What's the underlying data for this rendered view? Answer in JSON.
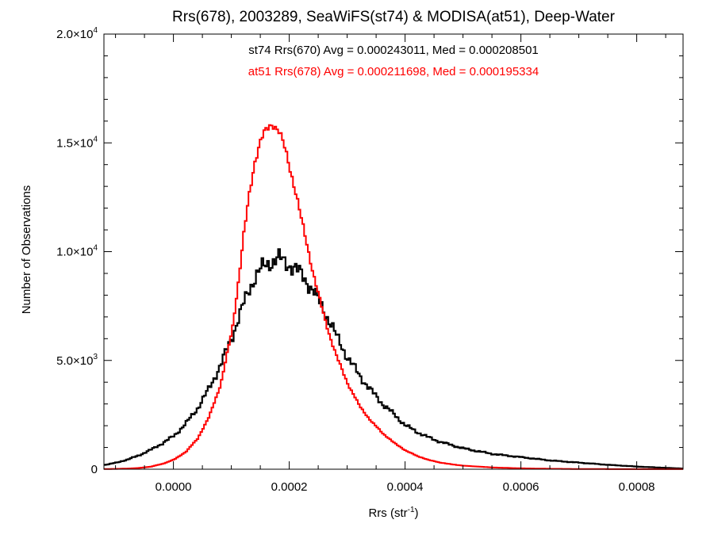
{
  "chart_data": {
    "type": "line",
    "title": "Rrs(678), 2003289, SeaWiFS(st74) & MODISA(at51), Deep-Water",
    "xlabel": "Rrs (str",
    "xlabel_sup": "-1",
    "xlabel_close": ")",
    "ylabel": "Number of Observations",
    "xlim": [
      -0.00012,
      0.00088
    ],
    "ylim": [
      0,
      20000
    ],
    "x_ticks": [
      {
        "value": 0.0,
        "label": "0.0000"
      },
      {
        "value": 0.0002,
        "label": "0.0002"
      },
      {
        "value": 0.0004,
        "label": "0.0004"
      },
      {
        "value": 0.0006,
        "label": "0.0006"
      },
      {
        "value": 0.0008,
        "label": "0.0008"
      }
    ],
    "y_ticks": [
      {
        "value": 0,
        "mant": "0",
        "exp": ""
      },
      {
        "value": 5000,
        "mant": "5.0×10",
        "exp": "3"
      },
      {
        "value": 10000,
        "mant": "1.0×10",
        "exp": "4"
      },
      {
        "value": 15000,
        "mant": "1.5×10",
        "exp": "4"
      },
      {
        "value": 20000,
        "mant": "2.0×10",
        "exp": "4"
      }
    ],
    "annotations": [
      {
        "text": "st74 Rrs(670) Avg = 0.000243011, Med = 0.000208501",
        "color": "#000000"
      },
      {
        "text": "at51 Rrs(678) Avg = 0.000211698, Med = 0.000195334",
        "color": "#ff0000"
      }
    ],
    "series": [
      {
        "color": "#000000",
        "style": "step",
        "x": [
          -0.00012,
          -0.0001,
          -8e-05,
          -6e-05,
          -4e-05,
          -2e-05,
          0.0,
          2e-05,
          4e-05,
          6e-05,
          8e-05,
          0.0001,
          0.00011,
          0.00012,
          0.00013,
          0.00014,
          0.00015,
          0.00016,
          0.00017,
          0.00018,
          0.00019,
          0.0002,
          0.00021,
          0.00022,
          0.00023,
          0.00024,
          0.00025,
          0.00026,
          0.00027,
          0.00028,
          0.0003,
          0.00032,
          0.00034,
          0.00036,
          0.00038,
          0.0004,
          0.00042,
          0.00044,
          0.00046,
          0.00048,
          0.0005,
          0.00055,
          0.0006,
          0.00065,
          0.0007,
          0.00075,
          0.0008,
          0.00085,
          0.00088
        ],
        "y": [
          200,
          300,
          450,
          650,
          900,
          1200,
          1550,
          2100,
          2800,
          3700,
          4800,
          6100,
          6900,
          7600,
          8300,
          8900,
          9200,
          9400,
          9600,
          9700,
          9500,
          9400,
          9200,
          8900,
          8600,
          8200,
          7700,
          7200,
          6700,
          6100,
          5100,
          4300,
          3600,
          3000,
          2500,
          2000,
          1700,
          1450,
          1250,
          1100,
          950,
          700,
          550,
          400,
          300,
          200,
          120,
          60,
          30
        ]
      },
      {
        "color": "#ff0000",
        "style": "step",
        "x": [
          -0.00012,
          -0.0001,
          -8e-05,
          -6e-05,
          -4e-05,
          -2e-05,
          0.0,
          2e-05,
          4e-05,
          6e-05,
          8e-05,
          0.0001,
          0.00011,
          0.00012,
          0.00013,
          0.00014,
          0.00015,
          0.00016,
          0.00017,
          0.00018,
          0.00019,
          0.0002,
          0.00021,
          0.00022,
          0.00023,
          0.00024,
          0.00025,
          0.00026,
          0.00027,
          0.00028,
          0.0003,
          0.00032,
          0.00034,
          0.00036,
          0.00038,
          0.0004,
          0.00042,
          0.00044,
          0.00046,
          0.00048,
          0.0005,
          0.00055,
          0.0006,
          0.00065,
          0.0007,
          0.00075,
          0.0008,
          0.00085,
          0.00088
        ],
        "y": [
          10,
          15,
          30,
          60,
          120,
          250,
          450,
          800,
          1400,
          2400,
          3900,
          6400,
          8500,
          10800,
          12700,
          14300,
          15200,
          15600,
          15900,
          15600,
          14800,
          13800,
          12700,
          11400,
          10200,
          9000,
          7900,
          6900,
          6000,
          5200,
          3900,
          2900,
          2200,
          1650,
          1200,
          850,
          600,
          420,
          300,
          220,
          160,
          80,
          40,
          20,
          10,
          5,
          3,
          2,
          2
        ]
      }
    ],
    "grid": false,
    "legend": "none"
  }
}
